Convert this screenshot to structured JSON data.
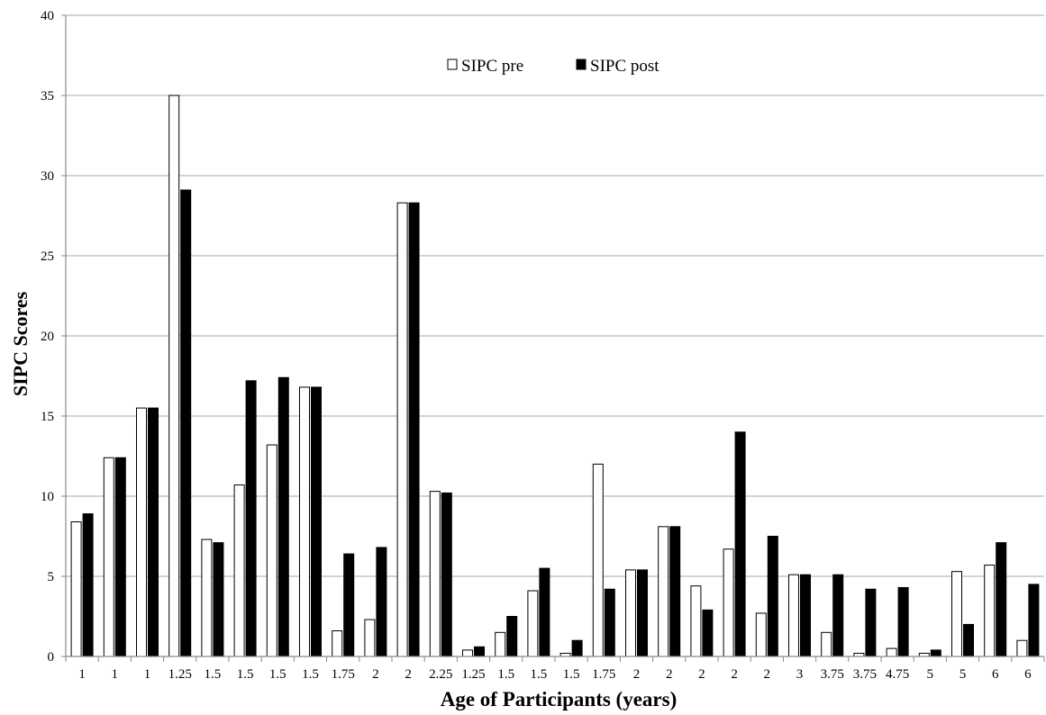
{
  "chart_data": {
    "type": "bar",
    "title": "",
    "xlabel": "Age of Participants (years)",
    "ylabel": "SIPC Scores",
    "ylim": [
      0,
      40
    ],
    "yticks": [
      0,
      5,
      10,
      15,
      20,
      25,
      30,
      35,
      40
    ],
    "grid": true,
    "legend_position": "top-center",
    "categories": [
      "1",
      "1",
      "1",
      "1.25",
      "1.5",
      "1.5",
      "1.5",
      "1.5",
      "1.75",
      "2",
      "2",
      "2.25",
      "1.25",
      "1.5",
      "1.5",
      "1.5",
      "1.75",
      "2",
      "2",
      "2",
      "2",
      "2",
      "3",
      "3.75",
      "3.75",
      "4.75",
      "5",
      "5",
      "6",
      "6"
    ],
    "series": [
      {
        "name": "SIPC pre",
        "color": "#ffffff",
        "values": [
          8.4,
          12.4,
          15.5,
          35.0,
          7.3,
          10.7,
          13.2,
          16.8,
          1.6,
          2.3,
          28.3,
          10.3,
          0.4,
          1.5,
          4.1,
          0.2,
          12.0,
          5.4,
          8.1,
          4.4,
          6.7,
          2.7,
          5.1,
          1.5,
          0.2,
          0.5,
          0.2,
          5.3,
          5.7,
          1.0
        ]
      },
      {
        "name": "SIPC post",
        "color": "#000000",
        "values": [
          8.9,
          12.4,
          15.5,
          29.1,
          7.1,
          17.2,
          17.4,
          16.8,
          6.4,
          6.8,
          28.3,
          10.2,
          0.6,
          2.5,
          5.5,
          1.0,
          4.2,
          5.4,
          8.1,
          2.9,
          14.0,
          7.5,
          5.1,
          5.1,
          4.2,
          4.3,
          0.4,
          2.0,
          7.1,
          4.5
        ]
      }
    ]
  }
}
